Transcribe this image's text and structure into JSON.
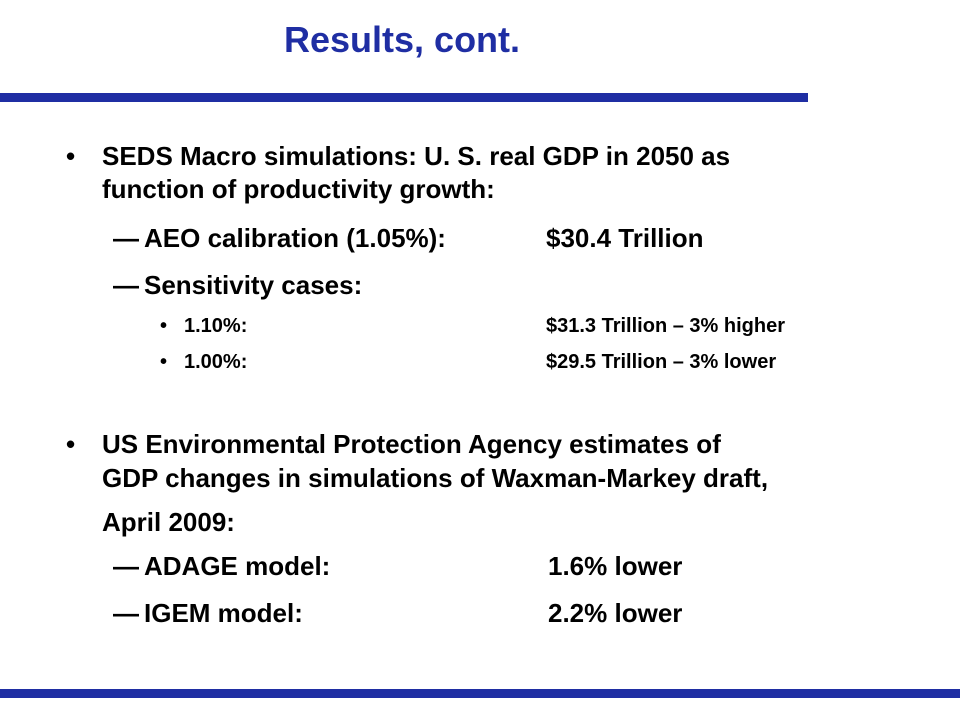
{
  "slide": {
    "title": "Results, cont.",
    "accent_color": "#1F2EA3",
    "bullet1": {
      "marker": "•",
      "line1": "SEDS Macro simulations: U. S. real GDP in 2050 as",
      "line2": "function of productivity growth:",
      "sub1": {
        "dash": "—",
        "label": "AEO calibration (1.05%):",
        "value": "$30.4 Trillion"
      },
      "sub2": {
        "dash": "—",
        "label": "Sensitivity cases:"
      },
      "cases": [
        {
          "marker": "•",
          "label": "1.10%:",
          "value": "$31.3 Trillion – 3% higher"
        },
        {
          "marker": "•",
          "label": "1.00%:",
          "value": "$29.5 Trillion – 3% lower"
        }
      ]
    },
    "bullet2": {
      "marker": "•",
      "line1": "US Environmental Protection Agency estimates of",
      "line2": "GDP changes in simulations of Waxman-Markey draft,",
      "line3": "April 2009:",
      "sub1": {
        "dash": "—",
        "label": "ADAGE model:",
        "value": "1.6% lower"
      },
      "sub2": {
        "dash": "—",
        "label": "IGEM model:",
        "value": "2.2% lower"
      }
    }
  }
}
